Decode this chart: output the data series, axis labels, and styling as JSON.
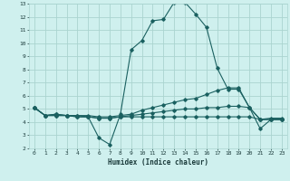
{
  "xlabel": "Humidex (Indice chaleur)",
  "bg_color": "#cff0ee",
  "grid_color": "#aad4d0",
  "line_color": "#1a6060",
  "xlim": [
    -0.5,
    23.5
  ],
  "ylim": [
    2,
    13
  ],
  "yticks": [
    2,
    3,
    4,
    5,
    6,
    7,
    8,
    9,
    10,
    11,
    12,
    13
  ],
  "xticks": [
    0,
    1,
    2,
    3,
    4,
    5,
    6,
    7,
    8,
    9,
    10,
    11,
    12,
    13,
    14,
    15,
    16,
    17,
    18,
    19,
    20,
    21,
    22,
    23
  ],
  "series": [
    {
      "x": [
        0,
        1,
        2,
        3,
        4,
        5,
        6,
        7,
        8,
        9,
        10,
        11,
        12,
        13,
        14,
        15,
        16,
        17,
        18,
        19,
        20,
        21,
        22,
        23
      ],
      "y": [
        5.1,
        4.5,
        4.6,
        4.5,
        4.5,
        4.4,
        2.8,
        2.3,
        4.6,
        9.5,
        10.2,
        11.7,
        11.8,
        13.1,
        13.1,
        12.2,
        11.2,
        8.1,
        6.5,
        6.5,
        5.1,
        3.5,
        4.2,
        4.2
      ]
    },
    {
      "x": [
        0,
        1,
        2,
        3,
        4,
        5,
        6,
        7,
        8,
        9,
        10,
        11,
        12,
        13,
        14,
        15,
        16,
        17,
        18,
        19,
        20,
        21,
        22,
        23
      ],
      "y": [
        5.1,
        4.5,
        4.6,
        4.5,
        4.5,
        4.5,
        4.4,
        4.4,
        4.5,
        4.6,
        4.9,
        5.1,
        5.3,
        5.5,
        5.7,
        5.8,
        6.1,
        6.4,
        6.6,
        6.6,
        5.1,
        4.2,
        4.3,
        4.3
      ]
    },
    {
      "x": [
        0,
        1,
        2,
        3,
        4,
        5,
        6,
        7,
        8,
        9,
        10,
        11,
        12,
        13,
        14,
        15,
        16,
        17,
        18,
        19,
        20,
        21,
        22,
        23
      ],
      "y": [
        5.1,
        4.5,
        4.5,
        4.5,
        4.4,
        4.4,
        4.3,
        4.3,
        4.4,
        4.5,
        4.6,
        4.7,
        4.8,
        4.9,
        5.0,
        5.0,
        5.1,
        5.1,
        5.2,
        5.2,
        5.1,
        4.2,
        4.2,
        4.2
      ]
    },
    {
      "x": [
        0,
        1,
        2,
        3,
        4,
        5,
        6,
        7,
        8,
        9,
        10,
        11,
        12,
        13,
        14,
        15,
        16,
        17,
        18,
        19,
        20,
        21,
        22,
        23
      ],
      "y": [
        5.1,
        4.5,
        4.5,
        4.5,
        4.4,
        4.4,
        4.3,
        4.3,
        4.4,
        4.4,
        4.4,
        4.4,
        4.4,
        4.4,
        4.4,
        4.4,
        4.4,
        4.4,
        4.4,
        4.4,
        4.4,
        4.2,
        4.2,
        4.2
      ]
    }
  ]
}
